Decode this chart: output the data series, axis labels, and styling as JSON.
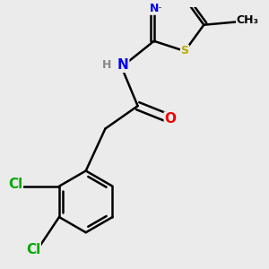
{
  "bg_color": "#ebebeb",
  "bond_color": "#000000",
  "bond_width": 1.8,
  "atom_colors": {
    "N": "#0000ee",
    "O": "#ee0000",
    "S": "#bbaa00",
    "Cl": "#00aa00",
    "C": "#000000",
    "H": "#888888"
  },
  "font_size": 11,
  "font_size_small": 9,
  "font_size_methyl": 9
}
